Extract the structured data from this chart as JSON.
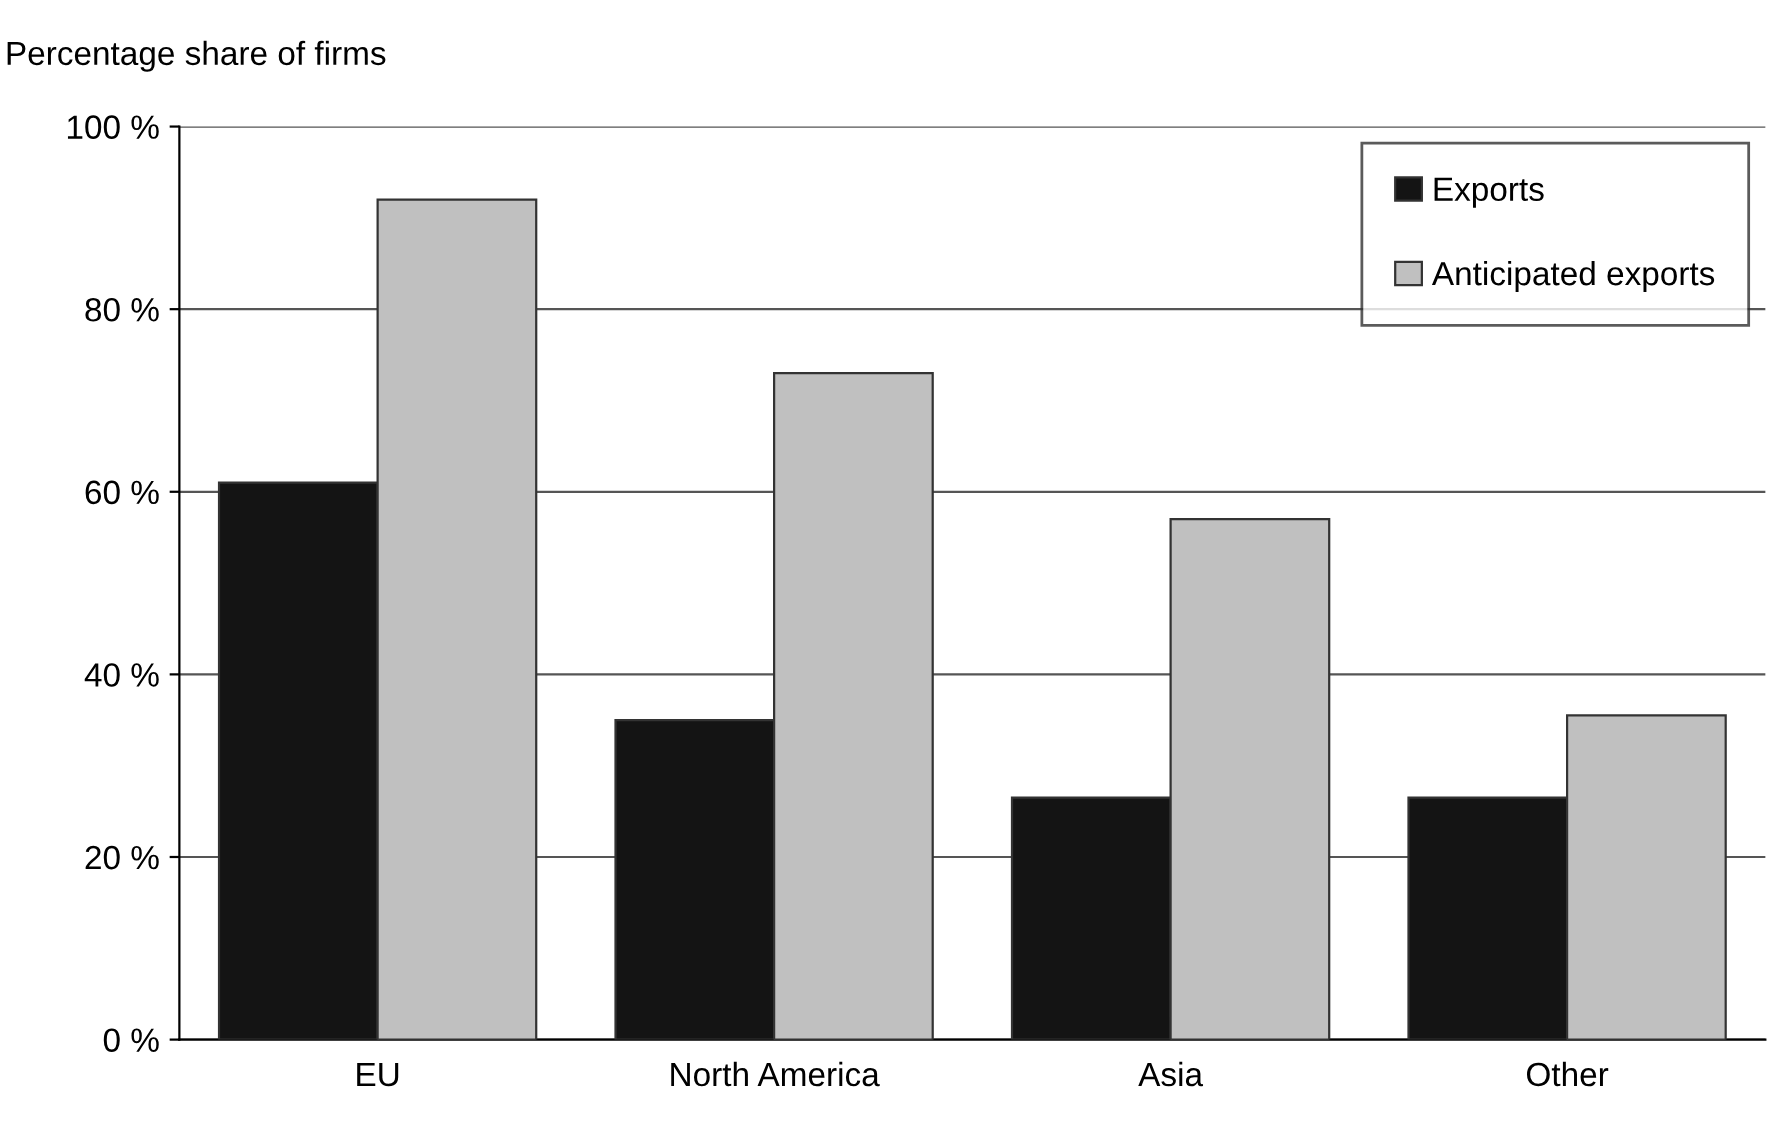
{
  "chart_data": {
    "type": "bar",
    "ylabel": "Percentage share of firms",
    "categories": [
      "EU",
      "North America",
      "Asia",
      "Other"
    ],
    "series": [
      {
        "name": "Exports",
        "color": "#141414",
        "values": [
          61,
          35,
          26.5,
          26.5
        ]
      },
      {
        "name": "Anticipated exports",
        "color": "#c0c0c0",
        "values": [
          92,
          73,
          57,
          35.5
        ]
      }
    ],
    "ylim": [
      0,
      100
    ],
    "yticks": [
      {
        "value": 0,
        "label": "0 %"
      },
      {
        "value": 20,
        "label": "20 %"
      },
      {
        "value": 40,
        "label": "40 %"
      },
      {
        "value": 60,
        "label": "60 %"
      },
      {
        "value": 80,
        "label": "80 %"
      },
      {
        "value": 100,
        "label": "100 %"
      }
    ],
    "grid": "y",
    "legend": "top right"
  }
}
